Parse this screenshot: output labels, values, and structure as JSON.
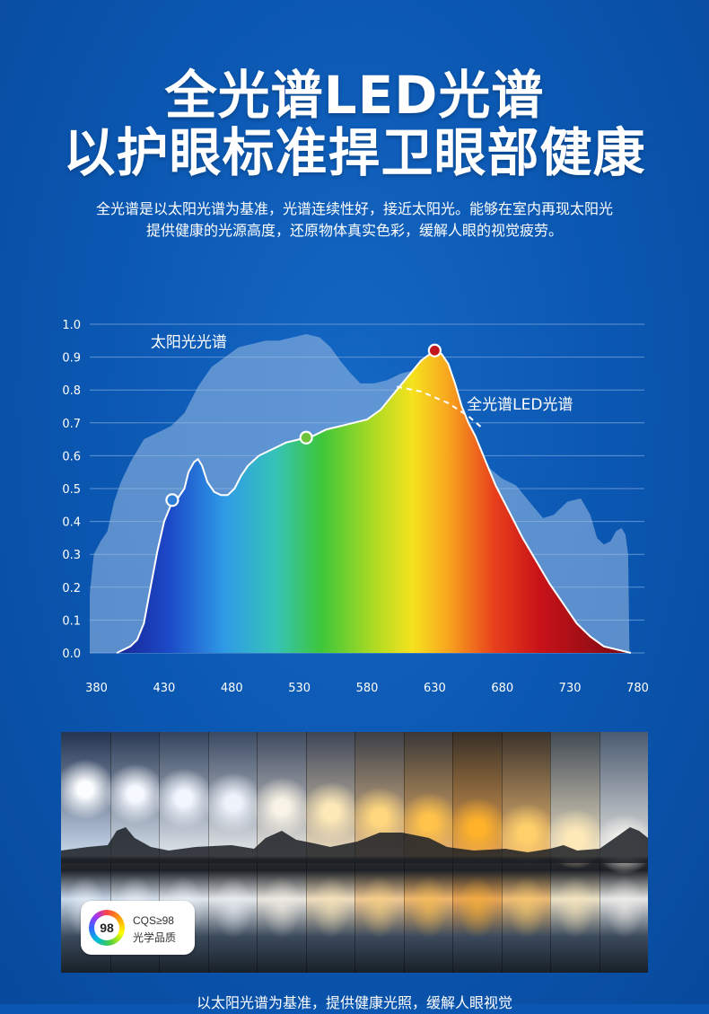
{
  "title_line1": "全光谱LED光谱",
  "title_line2": "以护眼标准捍卫眼部健康",
  "desc_line1": "全光谱是以太阳光谱为基准，光谱连续性好，接近太阳光。能够在室内再现太阳光",
  "desc_line2": "提供健康的光源高度，还原物体真实色彩，缓解人眼的视觉疲劳。",
  "chart_data": {
    "type": "area",
    "title": "",
    "xlabel": "",
    "ylabel": "",
    "xlim": [
      375,
      785
    ],
    "ylim": [
      0,
      1.0
    ],
    "grid": true,
    "x_ticks": [
      380,
      430,
      480,
      530,
      580,
      630,
      680,
      730,
      780
    ],
    "y_ticks": [
      0.0,
      0.1,
      0.2,
      0.3,
      0.4,
      0.5,
      0.6,
      0.7,
      0.8,
      0.9,
      1.0
    ],
    "y_tick_labels": [
      "0.0",
      "0.1",
      "0.2",
      "0.3",
      "0.4",
      "0.5",
      "0.6",
      "0.7",
      "0.8",
      "0.9",
      "1.0"
    ],
    "series": [
      {
        "name": "太阳光光谱",
        "color": "#9fbde3",
        "points": [
          [
            375,
            0
          ],
          [
            375,
            0.18
          ],
          [
            378,
            0.3
          ],
          [
            383,
            0.34
          ],
          [
            388,
            0.37
          ],
          [
            393,
            0.46
          ],
          [
            398,
            0.52
          ],
          [
            405,
            0.58
          ],
          [
            415,
            0.65
          ],
          [
            425,
            0.67
          ],
          [
            435,
            0.69
          ],
          [
            445,
            0.73
          ],
          [
            455,
            0.81
          ],
          [
            465,
            0.87
          ],
          [
            475,
            0.9
          ],
          [
            485,
            0.93
          ],
          [
            495,
            0.94
          ],
          [
            505,
            0.95
          ],
          [
            515,
            0.95
          ],
          [
            525,
            0.96
          ],
          [
            535,
            0.97
          ],
          [
            545,
            0.96
          ],
          [
            553,
            0.93
          ],
          [
            560,
            0.89
          ],
          [
            568,
            0.85
          ],
          [
            575,
            0.82
          ],
          [
            585,
            0.82
          ],
          [
            595,
            0.83
          ],
          [
            605,
            0.85
          ],
          [
            615,
            0.86
          ],
          [
            625,
            0.85
          ],
          [
            635,
            0.85
          ],
          [
            645,
            0.79
          ],
          [
            650,
            0.72
          ],
          [
            658,
            0.64
          ],
          [
            668,
            0.57
          ],
          [
            680,
            0.53
          ],
          [
            690,
            0.51
          ],
          [
            700,
            0.46
          ],
          [
            710,
            0.41
          ],
          [
            718,
            0.42
          ],
          [
            728,
            0.46
          ],
          [
            738,
            0.47
          ],
          [
            745,
            0.42
          ],
          [
            750,
            0.35
          ],
          [
            755,
            0.33
          ],
          [
            760,
            0.34
          ],
          [
            764,
            0.37
          ],
          [
            768,
            0.38
          ],
          [
            771,
            0.36
          ],
          [
            773,
            0.3
          ],
          [
            774,
            0.0
          ]
        ]
      },
      {
        "name": "全光谱LED光谱",
        "points": [
          [
            395,
            0
          ],
          [
            400,
            0.01
          ],
          [
            405,
            0.02
          ],
          [
            410,
            0.04
          ],
          [
            415,
            0.09
          ],
          [
            420,
            0.2
          ],
          [
            425,
            0.31
          ],
          [
            430,
            0.4
          ],
          [
            435,
            0.45
          ],
          [
            440,
            0.47
          ],
          [
            445,
            0.5
          ],
          [
            448,
            0.55
          ],
          [
            452,
            0.58
          ],
          [
            455,
            0.59
          ],
          [
            458,
            0.57
          ],
          [
            462,
            0.52
          ],
          [
            467,
            0.49
          ],
          [
            472,
            0.48
          ],
          [
            477,
            0.48
          ],
          [
            482,
            0.5
          ],
          [
            487,
            0.54
          ],
          [
            492,
            0.57
          ],
          [
            500,
            0.6
          ],
          [
            510,
            0.62
          ],
          [
            520,
            0.64
          ],
          [
            530,
            0.65
          ],
          [
            540,
            0.66
          ],
          [
            550,
            0.68
          ],
          [
            560,
            0.69
          ],
          [
            570,
            0.7
          ],
          [
            580,
            0.71
          ],
          [
            590,
            0.74
          ],
          [
            600,
            0.79
          ],
          [
            610,
            0.84
          ],
          [
            620,
            0.89
          ],
          [
            630,
            0.92
          ],
          [
            635,
            0.91
          ],
          [
            640,
            0.88
          ],
          [
            645,
            0.82
          ],
          [
            650,
            0.75
          ],
          [
            655,
            0.7
          ],
          [
            660,
            0.66
          ],
          [
            668,
            0.58
          ],
          [
            675,
            0.51
          ],
          [
            685,
            0.43
          ],
          [
            695,
            0.35
          ],
          [
            705,
            0.28
          ],
          [
            715,
            0.21
          ],
          [
            725,
            0.15
          ],
          [
            735,
            0.09
          ],
          [
            745,
            0.05
          ],
          [
            755,
            0.02
          ],
          [
            765,
            0.01
          ],
          [
            775,
            0.0
          ]
        ],
        "markers": [
          [
            436,
            0.465
          ],
          [
            535,
            0.655
          ],
          [
            630,
            0.92
          ]
        ],
        "dashed_projection": [
          [
            602,
            0.81
          ],
          [
            620,
            0.795
          ],
          [
            640,
            0.76
          ],
          [
            655,
            0.72
          ],
          [
            665,
            0.685
          ]
        ]
      }
    ],
    "annotations": [
      {
        "text": "太阳光光谱",
        "x": 420,
        "y": 0.93
      },
      {
        "text": "全光谱LED光谱",
        "x": 693,
        "y": 0.74
      }
    ]
  },
  "photo": {
    "panel_count": 12,
    "sun_colors": [
      "#fbfdff",
      "#f6f9ff",
      "#f2f6ff",
      "#eef2fb",
      "#f8f3e6",
      "#fde9b8",
      "#ffd77e",
      "#ffc24a",
      "#ffb22a",
      "#ffd06a",
      "#fde8b8",
      "#f6f3ec"
    ],
    "sky_top": [
      "#243451",
      "#2b3a55",
      "#34445e",
      "#3b4a63",
      "#3e4a60",
      "#3d4556",
      "#3c3f48",
      "#3a3838",
      "#372f27",
      "#3a332b",
      "#414a55",
      "#4a5a70"
    ],
    "sky_bottom": [
      "#c9d8ea",
      "#d4dfea",
      "#dfe6ec",
      "#e4e8ea",
      "#e9e6df",
      "#eedcbd",
      "#efc792",
      "#eeb66d",
      "#e9a553",
      "#eebb74",
      "#ece1c4",
      "#e6e6e4"
    ]
  },
  "badge": {
    "number": "98",
    "line1": "CQS≥98",
    "line2": "光学品质"
  },
  "footer_text": "以太阳光谱为基准，提供健康光照，缓解人眼视觉"
}
